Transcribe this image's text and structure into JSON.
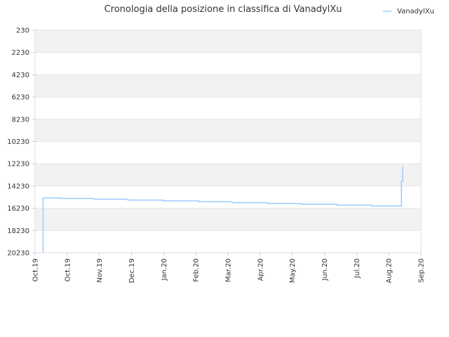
{
  "chart_data": {
    "type": "line",
    "title": "Cronologia della posizione in classifica di VanadylXu",
    "xlabel": "",
    "ylabel": "",
    "legend": {
      "position": "top-right",
      "entries": [
        "VanadylXu"
      ]
    },
    "grid": true,
    "y_inverted": true,
    "ylim": [
      230,
      20230
    ],
    "y_ticks": [
      "230",
      "2230",
      "4230",
      "6230",
      "8230",
      "10230",
      "12230",
      "14230",
      "16230",
      "18230",
      "20230"
    ],
    "x_ticks": [
      "Oct.19",
      "Oct.19",
      "Nov.19",
      "Dec.19",
      "Jan.20",
      "Feb.20",
      "Mar.20",
      "Apr.20",
      "May.20",
      "Jun.20",
      "Jul.20",
      "Aug.20",
      "Sep.20"
    ],
    "x_range": [
      "2019-09-30",
      "2020-09-01"
    ],
    "colors": {
      "series": "#99ccff",
      "band": "#f2f2f2",
      "grid": "#e6e6e6",
      "axis": "#cccccc",
      "text": "#333333"
    },
    "series": [
      {
        "name": "VanadylXu",
        "x": [
          "2019-10-07",
          "2019-10-07",
          "2019-10-08",
          "2019-10-22",
          "2019-11-20",
          "2019-12-20",
          "2020-01-20",
          "2020-02-20",
          "2020-03-20",
          "2020-04-20",
          "2020-05-20",
          "2020-06-20",
          "2020-07-20",
          "2020-08-15",
          "2020-08-15",
          "2020-08-16"
        ],
        "y": [
          20230,
          15300,
          15300,
          15350,
          15420,
          15500,
          15570,
          15650,
          15730,
          15800,
          15880,
          15950,
          16030,
          16100,
          13800,
          12500
        ]
      }
    ]
  }
}
